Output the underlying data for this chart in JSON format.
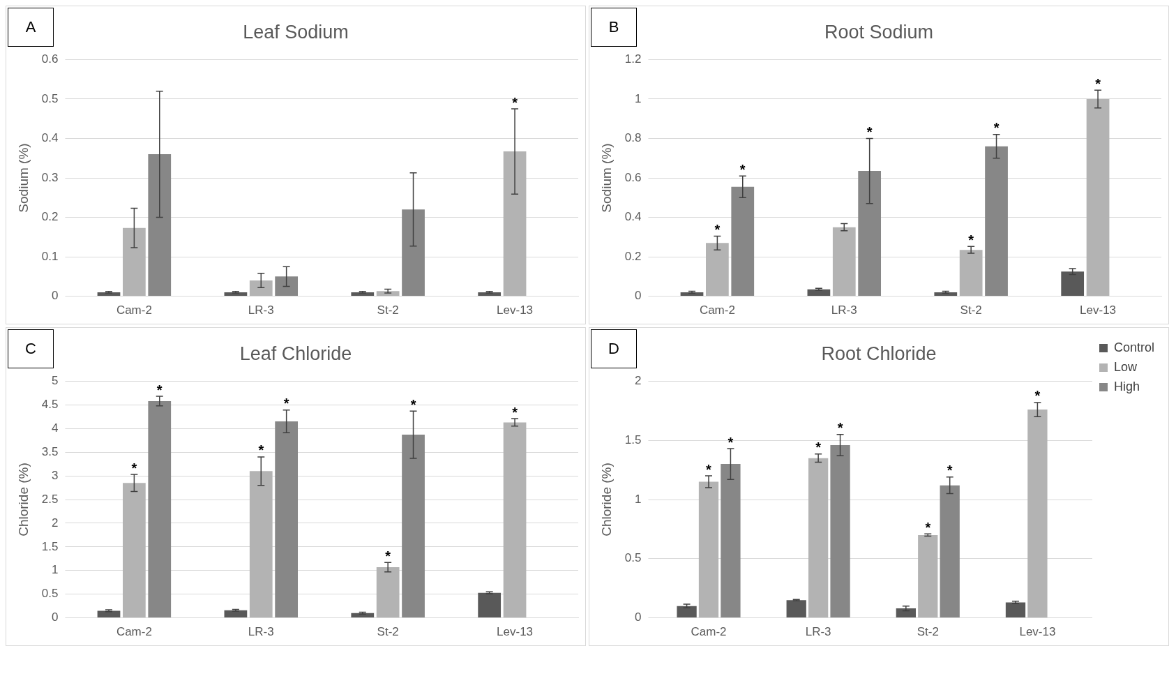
{
  "chart_data": [
    {
      "type": "bar",
      "title": "Leaf Sodium",
      "ylabel": "Sodium (%)",
      "annotations": [
        "A"
      ],
      "categories": [
        "Cam-2",
        "LR-3",
        "St-2",
        "Lev-13"
      ],
      "ylim": [
        0,
        0.6
      ],
      "yticks": [
        0,
        0.1,
        0.2,
        0.3,
        0.4,
        0.5,
        0.6
      ],
      "grid": "y",
      "legend": false,
      "series": [
        {
          "color": "#595959",
          "values": [
            0.01,
            0.01,
            0.01,
            0.01
          ],
          "errors": [
            0.002,
            0.002,
            0.002,
            0.002
          ],
          "value_labels": [
            null,
            null,
            null,
            null
          ]
        },
        {
          "color": "#b3b3b3",
          "values": [
            0.173,
            0.04,
            0.013,
            0.367
          ],
          "errors": [
            0.05,
            0.018,
            0.005,
            0.108
          ],
          "value_labels": [
            null,
            null,
            null,
            "*"
          ]
        },
        {
          "color": "#878787",
          "values": [
            0.36,
            0.05,
            0.22,
            null
          ],
          "errors": [
            0.16,
            0.025,
            0.093,
            null
          ],
          "value_labels": [
            null,
            null,
            null,
            null
          ]
        }
      ]
    },
    {
      "type": "bar",
      "title": "Root Sodium",
      "ylabel": "Sodium (%)",
      "annotations": [
        "B"
      ],
      "categories": [
        "Cam-2",
        "LR-3",
        "St-2",
        "Lev-13"
      ],
      "ylim": [
        0,
        1.2
      ],
      "yticks": [
        0,
        0.2,
        0.4,
        0.6,
        0.8,
        1,
        1.2
      ],
      "grid": "y",
      "legend": false,
      "series": [
        {
          "color": "#595959",
          "values": [
            0.02,
            0.035,
            0.02,
            0.125
          ],
          "errors": [
            0.005,
            0.005,
            0.005,
            0.015
          ],
          "value_labels": [
            null,
            null,
            null,
            null
          ]
        },
        {
          "color": "#b3b3b3",
          "values": [
            0.27,
            0.35,
            0.235,
            1.0
          ],
          "errors": [
            0.035,
            0.018,
            0.017,
            0.045
          ],
          "value_labels": [
            "*",
            null,
            "*",
            "*"
          ]
        },
        {
          "color": "#878787",
          "values": [
            0.555,
            0.635,
            0.76,
            null
          ],
          "errors": [
            0.055,
            0.165,
            0.06,
            null
          ],
          "value_labels": [
            "*",
            "*",
            "*",
            null
          ]
        }
      ]
    },
    {
      "type": "bar",
      "title": "Leaf Chloride",
      "ylabel": "Chloride (%)",
      "annotations": [
        "C"
      ],
      "categories": [
        "Cam-2",
        "LR-3",
        "St-2",
        "Lev-13"
      ],
      "ylim": [
        0,
        5
      ],
      "yticks": [
        0,
        0.5,
        1,
        1.5,
        2,
        2.5,
        3,
        3.5,
        4,
        4.5,
        5
      ],
      "grid": "y",
      "legend": false,
      "series": [
        {
          "color": "#595959",
          "values": [
            0.15,
            0.16,
            0.1,
            0.53
          ],
          "errors": [
            0.02,
            0.02,
            0.02,
            0.02
          ],
          "value_labels": [
            null,
            null,
            null,
            null
          ]
        },
        {
          "color": "#b3b3b3",
          "values": [
            2.85,
            3.1,
            1.07,
            4.13
          ],
          "errors": [
            0.18,
            0.3,
            0.1,
            0.08
          ],
          "value_labels": [
            "*",
            "*",
            "*",
            "*"
          ]
        },
        {
          "color": "#878787",
          "values": [
            4.58,
            4.15,
            3.87,
            null
          ],
          "errors": [
            0.1,
            0.24,
            0.5,
            null
          ],
          "value_labels": [
            "*",
            "*",
            "*",
            null
          ]
        }
      ]
    },
    {
      "type": "bar",
      "title": "Root Chloride",
      "ylabel": "Chloride (%)",
      "annotations": [
        "D"
      ],
      "categories": [
        "Cam-2",
        "LR-3",
        "St-2",
        "Lev-13"
      ],
      "ylim": [
        0,
        2
      ],
      "yticks": [
        0,
        0.5,
        1,
        1.5,
        2
      ],
      "grid": "y",
      "legend": "top right",
      "series": [
        {
          "name": "Control",
          "color": "#595959",
          "values": [
            0.1,
            0.15,
            0.08,
            0.13
          ],
          "errors": [
            0.015,
            0.005,
            0.02,
            0.01
          ],
          "value_labels": [
            null,
            null,
            null,
            null
          ]
        },
        {
          "name": "Low",
          "color": "#b3b3b3",
          "values": [
            1.15,
            1.35,
            0.7,
            1.76
          ],
          "errors": [
            0.05,
            0.035,
            0.01,
            0.06
          ],
          "value_labels": [
            "*",
            "*",
            "*",
            "*"
          ]
        },
        {
          "name": "High",
          "color": "#878787",
          "values": [
            1.3,
            1.46,
            1.12,
            null
          ],
          "errors": [
            0.13,
            0.09,
            0.07,
            null
          ],
          "value_labels": [
            "*",
            "*",
            "*",
            null
          ]
        }
      ]
    }
  ]
}
